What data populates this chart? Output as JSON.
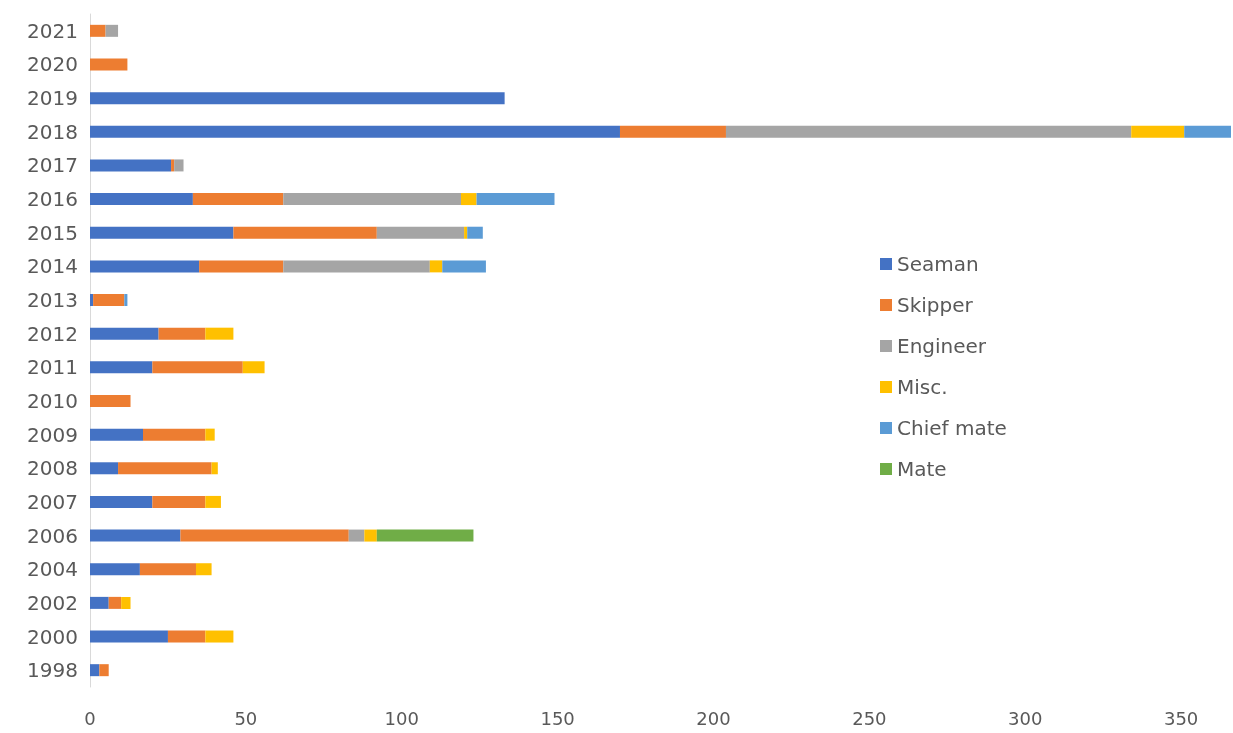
{
  "chart_data": {
    "type": "bar",
    "orientation": "horizontal",
    "stacked": true,
    "legend": "right",
    "grid": false,
    "categories": [
      "2021",
      "2020",
      "2019",
      "2018",
      "2017",
      "2016",
      "2015",
      "2014",
      "2013",
      "2012",
      "2011",
      "2010",
      "2009",
      "2008",
      "2007",
      "2006",
      "2004",
      "2002",
      "2000",
      "1998"
    ],
    "xlim": [
      0,
      366
    ],
    "xticks": [
      0,
      50,
      100,
      150,
      200,
      250,
      300,
      350
    ],
    "series": [
      {
        "name": "Seaman",
        "color": "#4472c4",
        "values": [
          null,
          null,
          133,
          170,
          26,
          33,
          46,
          35,
          1,
          22,
          20,
          null,
          17,
          9,
          20,
          29,
          16,
          6,
          25,
          3
        ]
      },
      {
        "name": "Skipper",
        "color": "#ed7d31",
        "values": [
          5,
          12,
          null,
          34,
          1,
          29,
          46,
          27,
          10,
          15,
          29,
          13,
          20,
          30,
          17,
          54,
          18,
          4,
          12,
          3
        ]
      },
      {
        "name": "Engineer",
        "color": "#a5a5a5",
        "values": [
          4,
          null,
          null,
          130,
          3,
          57,
          28,
          47,
          null,
          null,
          null,
          null,
          null,
          null,
          null,
          5,
          null,
          null,
          null,
          null
        ]
      },
      {
        "name": "Misc.",
        "color": "#ffc000",
        "values": [
          null,
          null,
          null,
          17,
          null,
          5,
          1,
          4,
          null,
          9,
          7,
          null,
          3,
          2,
          5,
          4,
          5,
          3,
          9,
          null
        ]
      },
      {
        "name": "Chief mate",
        "color": "#5b9bd5",
        "values": [
          null,
          null,
          null,
          15,
          null,
          25,
          5,
          14,
          1,
          null,
          null,
          null,
          null,
          null,
          null,
          null,
          null,
          null,
          null,
          null
        ]
      },
      {
        "name": "Mate",
        "color": "#70ad47",
        "values": [
          null,
          null,
          null,
          null,
          null,
          null,
          null,
          null,
          null,
          null,
          null,
          null,
          null,
          null,
          null,
          31,
          null,
          null,
          null,
          null
        ]
      }
    ]
  }
}
